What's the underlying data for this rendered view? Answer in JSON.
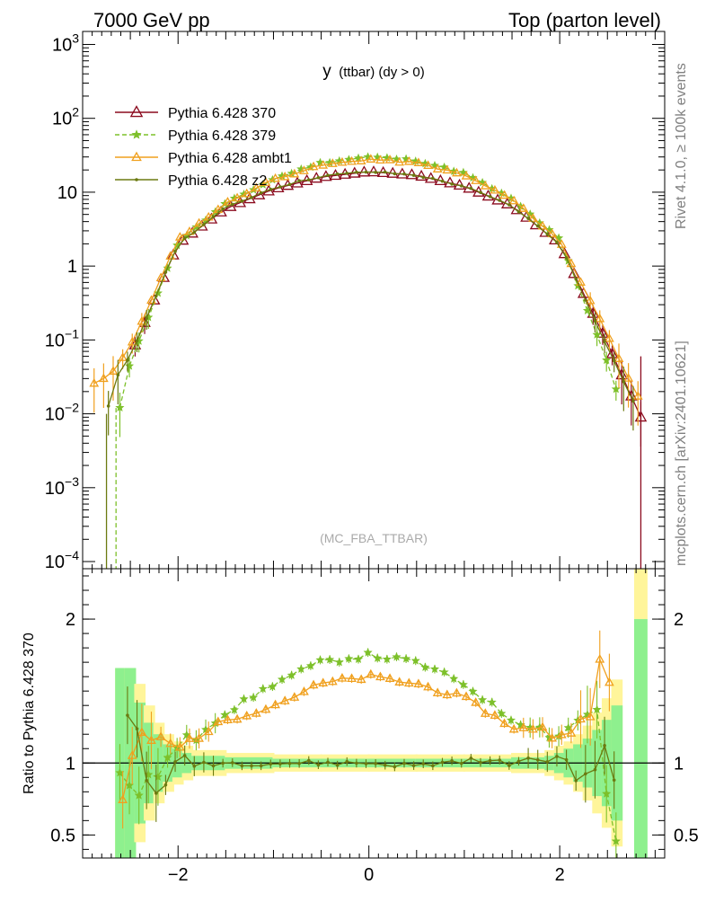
{
  "header": {
    "left": "7000 GeV pp",
    "right": "Top (parton level)"
  },
  "side": {
    "rivet": "Rivet 4.1.0, ≥ 100k events",
    "mcplots": "mcplots.cern.ch [arXiv:2401.10621]"
  },
  "colors": {
    "p370": "#8b0a1e",
    "p379": "#7dc02a",
    "ambt1": "#f0a01e",
    "z2": "#6b7a10",
    "band_inner": "#8ef08e",
    "band_outer": "#fff59a"
  },
  "chart_data": [
    {
      "type": "line",
      "title": "y",
      "title_sub": "(ttbar) (dy > 0)",
      "watermark": "(MC_FBA_TTBAR)",
      "yscale": "log",
      "xlim": [
        -3.0,
        3.1
      ],
      "ylim": [
        8e-05,
        1500
      ],
      "yticks": [
        {
          "v": 0.0001,
          "b": "10",
          "e": "−4"
        },
        {
          "v": 0.001,
          "b": "10",
          "e": "−3"
        },
        {
          "v": 0.01,
          "b": "10",
          "e": "−2"
        },
        {
          "v": 0.1,
          "b": "10",
          "e": "−1"
        },
        {
          "v": 1,
          "b": "1",
          "e": ""
        },
        {
          "v": 10,
          "b": "10",
          "e": ""
        },
        {
          "v": 100,
          "b": "10",
          "e": "2"
        },
        {
          "v": 1000,
          "b": "10",
          "e": "3"
        }
      ],
      "legend_position": "top-left",
      "series": [
        {
          "key": "p370",
          "name": "Pythia 6.428 370",
          "marker": "triangle",
          "dashed": false
        },
        {
          "key": "p379",
          "name": "Pythia 6.428 379",
          "marker": "star",
          "dashed": true
        },
        {
          "key": "ambt1",
          "name": "Pythia 6.428 ambt1",
          "marker": "triangle",
          "dashed": false
        },
        {
          "key": "z2",
          "name": "Pythia 6.428 z2",
          "marker": "dot",
          "dashed": false
        }
      ],
      "shape": {
        "p370": {
          "x": [
            -2.5,
            -2.0,
            -1.5,
            -1.0,
            -0.5,
            0.0,
            0.5,
            1.0,
            1.5,
            2.0,
            2.5,
            2.85
          ],
          "y": [
            0.06,
            2.0,
            6.0,
            11.0,
            16.0,
            19.0,
            17.0,
            12.0,
            6.5,
            2.0,
            0.09,
            0.009
          ]
        },
        "p379": {
          "x": [
            -2.6,
            -2.5,
            -2.0,
            -1.5,
            -1.0,
            -0.5,
            0.0,
            0.5,
            1.0,
            1.5,
            2.0,
            2.5,
            2.6
          ],
          "y": [
            0.012,
            0.05,
            2.1,
            7.0,
            15.0,
            25.0,
            30.0,
            27.0,
            18.0,
            8.0,
            2.3,
            0.05,
            0.02
          ]
        },
        "ambt1": {
          "x": [
            -2.9,
            -2.7,
            -2.5,
            -2.0,
            -1.5,
            -1.0,
            -0.5,
            0.0,
            0.5,
            1.0,
            1.5,
            2.0,
            2.5,
            2.85
          ],
          "y": [
            0.025,
            0.035,
            0.08,
            2.3,
            7.0,
            15.0,
            23.0,
            28.0,
            25.0,
            17.0,
            8.0,
            2.2,
            0.12,
            0.014
          ]
        },
        "z2": {
          "x": [
            -2.75,
            -2.65,
            -2.5,
            -2.0,
            -1.5,
            -1.0,
            -0.5,
            0.0,
            0.5,
            1.0,
            1.5,
            2.0,
            2.5,
            2.85
          ],
          "y": [
            0.01,
            0.03,
            0.06,
            2.0,
            6.2,
            11.5,
            16.5,
            19.0,
            17.0,
            12.0,
            6.5,
            2.0,
            0.08,
            0.009
          ]
        }
      }
    },
    {
      "type": "line",
      "ylabel": "Ratio to Pythia 6.428 370",
      "xlim": [
        -3.0,
        3.1
      ],
      "ylim": [
        0.34,
        2.35
      ],
      "xticks": [
        {
          "v": -2,
          "label": "−2"
        },
        {
          "v": 0,
          "label": "0"
        },
        {
          "v": 2,
          "label": "2"
        }
      ],
      "yticks": [
        {
          "v": 0.5,
          "label": "0.5"
        },
        {
          "v": 1,
          "label": "1"
        },
        {
          "v": 2,
          "label": "2"
        }
      ],
      "reference_line": 1,
      "shape": {
        "p379": {
          "x": [
            -2.6,
            -2.4,
            -2.0,
            -1.5,
            -1.0,
            -0.5,
            0.0,
            0.5,
            1.0,
            1.5,
            2.0,
            2.4,
            2.5,
            2.6
          ],
          "y": [
            0.9,
            0.8,
            1.1,
            1.35,
            1.55,
            1.7,
            1.75,
            1.7,
            1.55,
            1.3,
            1.2,
            1.4,
            0.7,
            0.4
          ]
        },
        "ambt1": {
          "x": [
            -2.6,
            -2.4,
            -2.0,
            -1.5,
            -1.0,
            -0.5,
            0.0,
            0.5,
            1.0,
            1.5,
            2.0,
            2.3,
            2.45,
            2.6
          ],
          "y": [
            0.7,
            1.2,
            1.1,
            1.3,
            1.4,
            1.55,
            1.6,
            1.55,
            1.45,
            1.25,
            1.2,
            1.3,
            1.9,
            1.1
          ]
        },
        "z2": {
          "x": [
            -2.6,
            -2.5,
            -2.3,
            -2.0,
            -1.5,
            -1.0,
            -0.5,
            0.0,
            0.5,
            1.0,
            1.5,
            2.0,
            2.3,
            2.5,
            2.6
          ],
          "y": [
            0.8,
            1.5,
            0.75,
            1.0,
            1.0,
            1.0,
            1.0,
            1.0,
            0.98,
            1.02,
            1.0,
            1.05,
            0.85,
            1.2,
            0.7
          ]
        }
      },
      "band": {
        "x": [
          -2.65,
          -2.55,
          -2.45,
          -2.35,
          -2.25,
          -2.15,
          -2.05,
          -1.95,
          -1.85,
          -1.5,
          -1.0,
          -0.5,
          0.0,
          0.5,
          1.0,
          1.5,
          1.85,
          1.95,
          2.05,
          2.15,
          2.25,
          2.35,
          2.45,
          2.55,
          2.65
        ],
        "inner": [
          0.34,
          0.34,
          0.58,
          0.72,
          0.8,
          0.87,
          0.9,
          0.93,
          0.95,
          0.96,
          0.97,
          0.97,
          0.97,
          0.97,
          0.97,
          0.96,
          0.95,
          0.93,
          0.9,
          0.87,
          0.83,
          0.77,
          0.7,
          0.6,
          0.34
        ],
        "outer": [
          0.34,
          0.34,
          0.45,
          0.6,
          0.72,
          0.8,
          0.85,
          0.88,
          0.91,
          0.93,
          0.94,
          0.94,
          0.94,
          0.94,
          0.94,
          0.93,
          0.91,
          0.88,
          0.85,
          0.8,
          0.74,
          0.65,
          0.55,
          0.42,
          0.34
        ]
      },
      "edge_bin": {
        "x": [
          2.78,
          2.92
        ],
        "inner": [
          0.34,
          2.0
        ],
        "outer": [
          2.0,
          2.35
        ]
      }
    }
  ]
}
